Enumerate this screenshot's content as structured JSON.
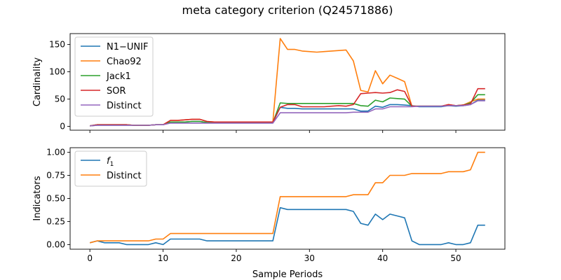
{
  "figure": {
    "title": "meta category criterion (Q24571886)"
  },
  "chart_data": [
    {
      "type": "line",
      "title": "",
      "xlabel": "",
      "ylabel": "Cardinality",
      "xlim": [
        -2.7,
        56.7
      ],
      "ylim": [
        -7,
        170
      ],
      "xticks": [
        0,
        10,
        20,
        30,
        40,
        50
      ],
      "xticks_labeled": false,
      "yticks": [
        0,
        50,
        100,
        150
      ],
      "ytick_labels": [
        "0",
        "50",
        "100",
        "150"
      ],
      "grid": false,
      "legend": "top-left",
      "x": [
        0,
        1,
        2,
        3,
        4,
        5,
        6,
        7,
        8,
        9,
        10,
        11,
        12,
        13,
        14,
        15,
        16,
        17,
        18,
        19,
        20,
        21,
        22,
        23,
        24,
        25,
        26,
        27,
        28,
        29,
        30,
        31,
        32,
        33,
        34,
        35,
        36,
        37,
        38,
        39,
        40,
        41,
        42,
        43,
        44,
        45,
        46,
        47,
        48,
        49,
        50,
        51,
        52,
        53,
        54
      ],
      "series": [
        {
          "name": "N1−UNIF",
          "color": "#1f77b4",
          "values": [
            1,
            2,
            2,
            2,
            2,
            2,
            2,
            2,
            2,
            3,
            3,
            8,
            8,
            8,
            9,
            9,
            7,
            7,
            7,
            7,
            7,
            7,
            7,
            7,
            7,
            7,
            35,
            33,
            33,
            32,
            32,
            32,
            32,
            32,
            32,
            32,
            32,
            28,
            28,
            37,
            35,
            40,
            40,
            39,
            38,
            36,
            36,
            36,
            36,
            38,
            37,
            38,
            40,
            48,
            48
          ]
        },
        {
          "name": "Chao92",
          "color": "#ff7f0e",
          "values": [
            1,
            3,
            3,
            3,
            3,
            3,
            2,
            2,
            2,
            3,
            3,
            11,
            11,
            12,
            13,
            13,
            9,
            8,
            8,
            8,
            8,
            8,
            8,
            8,
            8,
            8,
            161,
            141,
            141,
            138,
            137,
            136,
            137,
            138,
            139,
            140,
            120,
            66,
            63,
            102,
            78,
            94,
            88,
            82,
            37,
            37,
            37,
            37,
            37,
            40,
            38,
            39,
            45,
            50,
            50
          ]
        },
        {
          "name": "Jack1",
          "color": "#2ca02c",
          "values": [
            1,
            3,
            3,
            3,
            3,
            3,
            2,
            2,
            2,
            3,
            3,
            8,
            8,
            8,
            9,
            9,
            7,
            7,
            7,
            7,
            7,
            7,
            7,
            7,
            7,
            7,
            43,
            42,
            42,
            42,
            42,
            42,
            42,
            42,
            42,
            42,
            42,
            38,
            37,
            48,
            45,
            52,
            51,
            50,
            37,
            37,
            37,
            37,
            37,
            39,
            38,
            39,
            43,
            58,
            58
          ]
        },
        {
          "name": "SOR",
          "color": "#d62728",
          "values": [
            1,
            3,
            3,
            3,
            3,
            3,
            2,
            2,
            2,
            3,
            3,
            11,
            11,
            12,
            13,
            13,
            9,
            8,
            8,
            8,
            8,
            8,
            8,
            8,
            8,
            8,
            35,
            40,
            40,
            36,
            36,
            36,
            36,
            37,
            38,
            37,
            40,
            60,
            61,
            62,
            61,
            62,
            67,
            64,
            37,
            37,
            37,
            37,
            37,
            40,
            38,
            39,
            41,
            69,
            69
          ]
        },
        {
          "name": "Distinct",
          "color": "#9467bd",
          "values": [
            1,
            2,
            2,
            2,
            2,
            2,
            2,
            2,
            2,
            3,
            3,
            6,
            6,
            6,
            6,
            6,
            6,
            6,
            6,
            6,
            6,
            6,
            6,
            6,
            6,
            6,
            25,
            25,
            25,
            25,
            25,
            25,
            25,
            25,
            25,
            25,
            26,
            26,
            26,
            32,
            32,
            36,
            36,
            36,
            36,
            37,
            37,
            37,
            37,
            38,
            38,
            38,
            40,
            47,
            47
          ]
        }
      ]
    },
    {
      "type": "line",
      "title": "",
      "xlabel": "Sample Periods",
      "ylabel": "Indicators",
      "xlim": [
        -2.7,
        56.7
      ],
      "ylim": [
        -0.05,
        1.05
      ],
      "xticks": [
        0,
        10,
        20,
        30,
        40,
        50
      ],
      "xtick_labels": [
        "0",
        "10",
        "20",
        "30",
        "40",
        "50"
      ],
      "yticks": [
        0,
        0.25,
        0.5,
        0.75,
        1.0
      ],
      "ytick_labels": [
        "0.00",
        "0.25",
        "0.50",
        "0.75",
        "1.00"
      ],
      "grid": false,
      "legend": "top-left",
      "x": [
        0,
        1,
        2,
        3,
        4,
        5,
        6,
        7,
        8,
        9,
        10,
        11,
        12,
        13,
        14,
        15,
        16,
        17,
        18,
        19,
        20,
        21,
        22,
        23,
        24,
        25,
        26,
        27,
        28,
        29,
        30,
        31,
        32,
        33,
        34,
        35,
        36,
        37,
        38,
        39,
        40,
        41,
        42,
        43,
        44,
        45,
        46,
        47,
        48,
        49,
        50,
        51,
        52,
        53,
        54
      ],
      "series": [
        {
          "name": "f",
          "name_subscript": "1",
          "color": "#1f77b4",
          "values": [
            0.02,
            0.04,
            0.02,
            0.02,
            0.02,
            0.0,
            0.0,
            0.0,
            0.0,
            0.02,
            0.0,
            0.06,
            0.06,
            0.06,
            0.06,
            0.06,
            0.04,
            0.04,
            0.04,
            0.04,
            0.04,
            0.04,
            0.04,
            0.04,
            0.04,
            0.04,
            0.4,
            0.38,
            0.38,
            0.38,
            0.38,
            0.38,
            0.38,
            0.38,
            0.38,
            0.38,
            0.36,
            0.23,
            0.21,
            0.33,
            0.27,
            0.33,
            0.31,
            0.29,
            0.04,
            0.0,
            0.0,
            0.0,
            0.0,
            0.02,
            0.0,
            0.0,
            0.02,
            0.21,
            0.21
          ]
        },
        {
          "name": "Distinct",
          "color": "#ff7f0e",
          "values": [
            0.02,
            0.04,
            0.04,
            0.04,
            0.04,
            0.04,
            0.04,
            0.04,
            0.04,
            0.06,
            0.06,
            0.12,
            0.12,
            0.12,
            0.12,
            0.12,
            0.12,
            0.12,
            0.12,
            0.12,
            0.12,
            0.12,
            0.12,
            0.12,
            0.12,
            0.12,
            0.52,
            0.52,
            0.52,
            0.52,
            0.52,
            0.52,
            0.52,
            0.52,
            0.52,
            0.52,
            0.54,
            0.54,
            0.54,
            0.67,
            0.67,
            0.75,
            0.75,
            0.75,
            0.77,
            0.77,
            0.77,
            0.77,
            0.77,
            0.79,
            0.79,
            0.79,
            0.81,
            1.0,
            1.0
          ]
        }
      ]
    }
  ]
}
